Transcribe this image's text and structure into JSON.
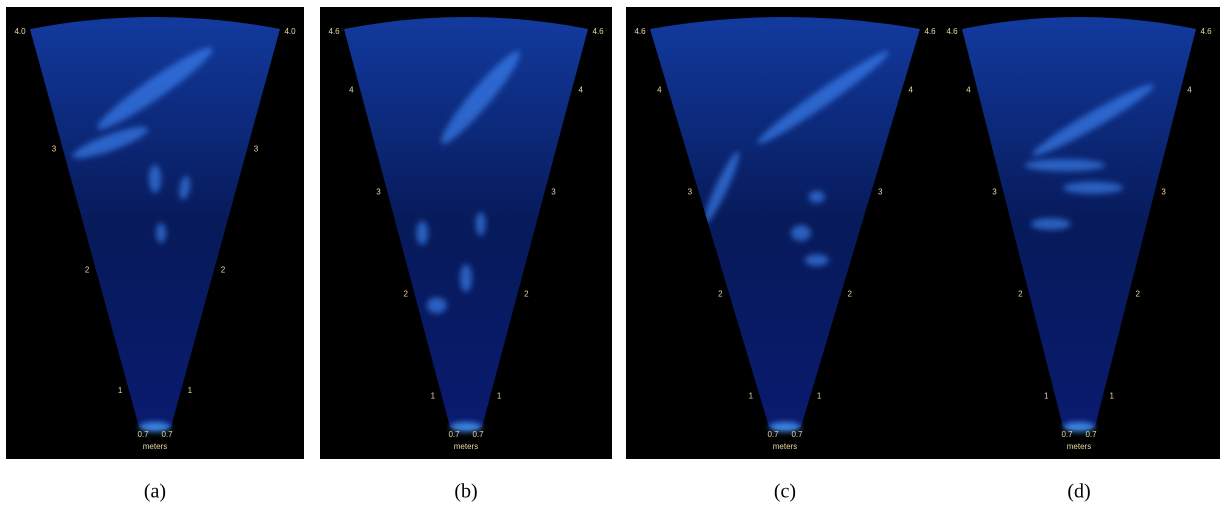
{
  "panels": [
    {
      "top": "4.0",
      "ticks": [
        "3",
        "2",
        "1"
      ],
      "base": "0.7",
      "unit": "meters",
      "caption": "(a)"
    },
    {
      "top": "4.6",
      "ticks": [
        "4",
        "3",
        "2",
        "1"
      ],
      "base": "0.7",
      "unit": "meters",
      "caption": "(b)"
    },
    {
      "top": "4.6",
      "ticks": [
        "4",
        "3",
        "2",
        "1"
      ],
      "base": "0.7",
      "unit": "meters",
      "caption": "(c)"
    },
    {
      "top": "4.6",
      "ticks": [
        "4",
        "3",
        "2",
        "1"
      ],
      "base": "0.7",
      "unit": "meters",
      "caption": "(d)"
    }
  ]
}
